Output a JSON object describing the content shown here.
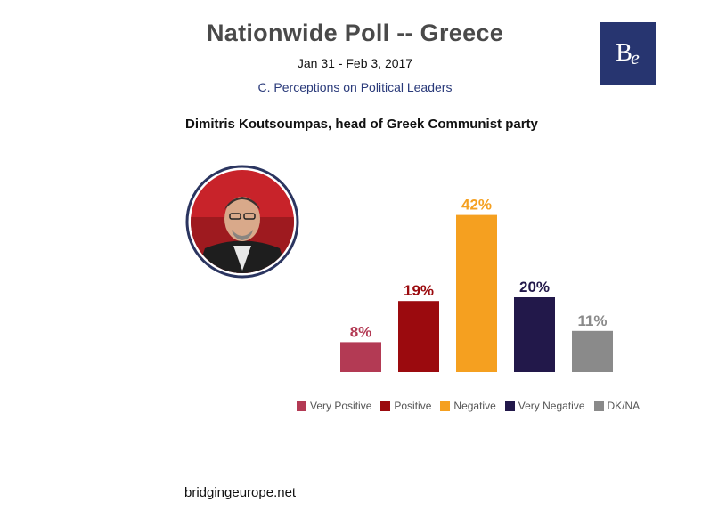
{
  "header": {
    "title": "Nationwide Poll -- Greece",
    "dates": "Jan 31 - Feb 3, 2017",
    "section": "C. Perceptions on Political Leaders"
  },
  "logo": {
    "letter1": "B",
    "letter2": "e"
  },
  "subject": "Dimitris Koutsoumpas, head of Greek Communist party",
  "footer": "bridgingeurope.net",
  "colors": {
    "very_positive": "#b33a54",
    "positive": "#9b0a0e",
    "negative": "#f5a020",
    "very_negative": "#22184a",
    "dkna": "#8a8a8a"
  },
  "chart_data": {
    "type": "bar",
    "title": "",
    "categories": [
      "Very Positive",
      "Positive",
      "Negative",
      "Very Negative",
      "DK/NA"
    ],
    "values": [
      8,
      19,
      42,
      20,
      11
    ],
    "value_labels": [
      "8%",
      "19%",
      "42%",
      "20%",
      "11%"
    ],
    "ylim": [
      0,
      45
    ],
    "legend": "bottom",
    "grid": false,
    "xlabel": "",
    "ylabel": ""
  }
}
